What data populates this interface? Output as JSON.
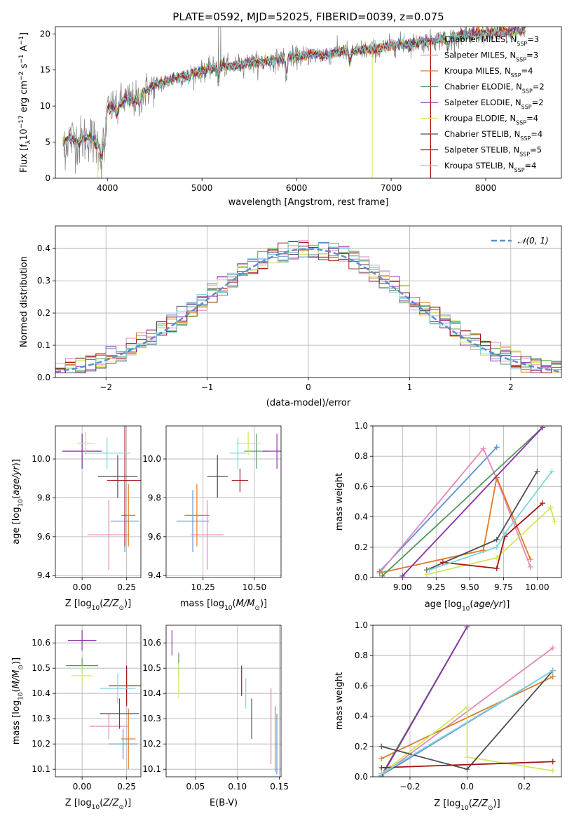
{
  "figure": {
    "title": "PLATE=0592, MJD=52025, FIBERID=0039, z=0.075"
  },
  "colors": {
    "Chabrier MILES": "#5b8fd6",
    "Salpeter MILES": "#e387b8",
    "Kroupa MILES": "#e07b24",
    "Chabrier ELODIE": "#4e9a5a",
    "Salpeter ELODIE": "#8c2fa8",
    "Kroupa ELODIE": "#cfe85a",
    "Chabrier STELIB": "#4d4d4d",
    "Salpeter STELIB": "#a31515",
    "Kroupa STELIB": "#7fd4dc",
    "normal": "#5b8fd6",
    "data": "#808080"
  },
  "chart_data": [
    {
      "id": "spectrum",
      "type": "line",
      "xlabel": "wavelength [Angstrom, rest frame]",
      "ylabel": "Flux [f_λ10^-17 erg cm^-2 s^-1 A^-1]",
      "xlim": [
        3450,
        8800
      ],
      "ylim": [
        0,
        21
      ],
      "xticks": [
        4000,
        5000,
        6000,
        7000,
        8000
      ],
      "yticks": [
        0,
        5,
        10,
        15,
        20
      ],
      "legend_position": "top-right",
      "continuum": {
        "x": [
          3550,
          3600,
          3700,
          3800,
          3900,
          3950,
          4000,
          4100,
          4200,
          4300,
          4400,
          4500,
          4600,
          4700,
          4800,
          4900,
          5000,
          5100,
          5200,
          5300,
          5400,
          5500,
          5600,
          5700,
          5800,
          5900,
          6000,
          6100,
          6200,
          6300,
          6400,
          6500,
          6600,
          6700,
          6800,
          6900,
          7000,
          7100,
          7200,
          7300,
          7400,
          7500,
          7600,
          7700,
          7800,
          7900,
          8000,
          8100,
          8200,
          8300,
          8400
        ],
        "y": [
          5.0,
          5.6,
          5.0,
          5.8,
          4.6,
          4.8,
          9.5,
          10.2,
          11.0,
          10.8,
          12.0,
          12.8,
          13.3,
          13.8,
          14.2,
          14.6,
          14.8,
          15.2,
          15.6,
          15.4,
          15.8,
          16.0,
          16.0,
          16.2,
          16.4,
          16.8,
          16.8,
          17.0,
          17.2,
          17.0,
          17.4,
          17.6,
          17.5,
          17.8,
          17.8,
          18.0,
          18.4,
          18.6,
          18.6,
          18.8,
          19.0,
          19.2,
          19.4,
          19.6,
          19.8,
          20.0,
          20.0,
          20.2,
          20.2,
          20.3,
          20.4
        ]
      },
      "absorption_lines": [
        {
          "x": 3934,
          "y": 2.5
        },
        {
          "x": 3969,
          "y": 3.5
        },
        {
          "x": 4102,
          "y": 8.5
        },
        {
          "x": 4340,
          "y": 10.0
        },
        {
          "x": 4861,
          "y": 13.5
        },
        {
          "x": 5175,
          "y": 13.0
        },
        {
          "x": 5893,
          "y": 13.5
        },
        {
          "x": 6563,
          "y": 16.0
        },
        {
          "x": 7600,
          "y": 17.5
        }
      ],
      "series": [
        {
          "name": "Chabrier MILES, N_SSP=3"
        },
        {
          "name": "Salpeter MILES, N_SSP=3"
        },
        {
          "name": "Kroupa MILES, N_SSP=4"
        },
        {
          "name": "Chabrier ELODIE, N_SSP=2"
        },
        {
          "name": "Salpeter ELODIE, N_SSP=2"
        },
        {
          "name": "Kroupa ELODIE, N_SSP=4"
        },
        {
          "name": "Chabrier STELIB, N_SSP=4"
        },
        {
          "name": "Salpeter STELIB, N_SSP=5"
        },
        {
          "name": "Kroupa STELIB, N_SSP=4"
        }
      ]
    },
    {
      "id": "residuals",
      "type": "step",
      "xlabel": "(data-model)/error",
      "ylabel": "Normed distribution",
      "xlim": [
        -2.5,
        2.5
      ],
      "ylim": [
        0,
        0.47
      ],
      "xticks": [
        -2,
        -1,
        0,
        1,
        2
      ],
      "yticks": [
        0.0,
        0.1,
        0.2,
        0.3,
        0.4
      ],
      "grid": true,
      "legend": "𝒩(0, 1)",
      "legend_position": "top-right",
      "bin_width": 0.1
    },
    {
      "id": "age-vs-Z",
      "type": "errorbar",
      "xlabel": "Z [log10(Z/Z⊙)]",
      "ylabel": "age  [log10(age/yr)]",
      "xlim": [
        -0.15,
        0.33
      ],
      "ylim": [
        9.39,
        10.17
      ],
      "xticks": [
        0.0,
        0.25
      ],
      "yticks": [
        9.4,
        9.6,
        9.8,
        10.0
      ],
      "grid": true,
      "points": [
        {
          "model": "Chabrier MILES",
          "x": 0.24,
          "y": 9.68,
          "xerr": 0.08,
          "yerr": 0.16
        },
        {
          "model": "Salpeter MILES",
          "x": 0.15,
          "y": 9.61,
          "xerr": 0.12,
          "yerr": 0.18
        },
        {
          "model": "Kroupa MILES",
          "x": 0.26,
          "y": 9.71,
          "xerr": 0.04,
          "yerr": 0.16
        },
        {
          "model": "Chabrier ELODIE",
          "x": 0.0,
          "y": 10.04,
          "xerr": 0.11,
          "yerr": 0.09
        },
        {
          "model": "Salpeter ELODIE",
          "x": 0.0,
          "y": 10.04,
          "xerr": 0.11,
          "yerr": 0.09
        },
        {
          "model": "Kroupa ELODIE",
          "x": 0.02,
          "y": 10.08,
          "xerr": 0.05,
          "yerr": 0.06
        },
        {
          "model": "Chabrier STELIB",
          "x": 0.2,
          "y": 9.91,
          "xerr": 0.11,
          "yerr": 0.11
        },
        {
          "model": "Salpeter STELIB",
          "x": 0.24,
          "y": 9.89,
          "xerr": 0.1,
          "yerr": 0.34
        },
        {
          "model": "Kroupa STELIB",
          "x": 0.14,
          "y": 10.03,
          "xerr": 0.13,
          "yerr": 0.08
        }
      ]
    },
    {
      "id": "age-vs-mass",
      "type": "errorbar",
      "xlabel": "mass [log10(M/M⊙)]",
      "ylabel": "",
      "xlim": [
        10.07,
        10.63
      ],
      "ylim": [
        9.39,
        10.17
      ],
      "xticks": [
        10.25,
        10.5
      ],
      "yticks": [
        9.4,
        9.6,
        9.8,
        10.0
      ],
      "grid": true,
      "points": [
        {
          "model": "Chabrier MILES",
          "x": 10.2,
          "y": 9.68,
          "xerr": 0.08,
          "yerr": 0.16
        },
        {
          "model": "Salpeter MILES",
          "x": 10.27,
          "y": 9.61,
          "xerr": 0.08,
          "yerr": 0.18
        },
        {
          "model": "Kroupa MILES",
          "x": 10.22,
          "y": 9.71,
          "xerr": 0.06,
          "yerr": 0.16
        },
        {
          "model": "Chabrier ELODIE",
          "x": 10.51,
          "y": 10.04,
          "xerr": 0.06,
          "yerr": 0.09
        },
        {
          "model": "Salpeter ELODIE",
          "x": 10.61,
          "y": 10.04,
          "xerr": 0.07,
          "yerr": 0.09
        },
        {
          "model": "Kroupa ELODIE",
          "x": 10.47,
          "y": 10.08,
          "xerr": 0.06,
          "yerr": 0.06
        },
        {
          "model": "Chabrier STELIB",
          "x": 10.32,
          "y": 9.91,
          "xerr": 0.05,
          "yerr": 0.11
        },
        {
          "model": "Salpeter STELIB",
          "x": 10.43,
          "y": 9.89,
          "xerr": 0.04,
          "yerr": 0.06
        },
        {
          "model": "Kroupa STELIB",
          "x": 10.42,
          "y": 10.03,
          "xerr": 0.04,
          "yerr": 0.08
        }
      ]
    },
    {
      "id": "weight-vs-age",
      "type": "line",
      "xlabel": "age  [log10(age/yr)]",
      "ylabel": "mass weight",
      "xlim": [
        8.78,
        10.18
      ],
      "ylim": [
        0,
        1
      ],
      "xticks": [
        9.0,
        9.25,
        9.5,
        9.75,
        10.0
      ],
      "yticks": [
        0.0,
        0.2,
        0.4,
        0.6,
        0.8,
        1.0
      ],
      "grid": true,
      "series": [
        {
          "model": "Chabrier MILES",
          "x": [
            8.83,
            9.7
          ],
          "y": [
            0.04,
            0.86
          ]
        },
        {
          "model": "Salpeter MILES",
          "x": [
            8.83,
            9.6,
            9.7,
            9.95
          ],
          "y": [
            0.03,
            0.85,
            0.65,
            0.07
          ]
        },
        {
          "model": "Kroupa MILES",
          "x": [
            8.83,
            9.6,
            9.7,
            9.95
          ],
          "y": [
            0.03,
            0.18,
            0.66,
            0.12
          ]
        },
        {
          "model": "Chabrier ELODIE",
          "x": [
            8.85,
            10.04
          ],
          "y": [
            0.01,
            0.99
          ]
        },
        {
          "model": "Salpeter ELODIE",
          "x": [
            9.0,
            10.04
          ],
          "y": [
            0.01,
            0.99
          ]
        },
        {
          "model": "Kroupa ELODIE",
          "x": [
            9.18,
            9.7,
            10.1,
            10.13
          ],
          "y": [
            0.02,
            0.13,
            0.46,
            0.37
          ]
        },
        {
          "model": "Chabrier STELIB",
          "x": [
            9.18,
            9.7,
            10.0
          ],
          "y": [
            0.05,
            0.25,
            0.7
          ]
        },
        {
          "model": "Salpeter STELIB",
          "x": [
            9.3,
            9.7,
            9.76,
            10.04
          ],
          "y": [
            0.1,
            0.06,
            0.27,
            0.49
          ]
        },
        {
          "model": "Kroupa STELIB",
          "x": [
            9.2,
            9.7,
            9.76,
            10.11
          ],
          "y": [
            0.05,
            0.2,
            0.29,
            0.7
          ]
        }
      ]
    },
    {
      "id": "mass-vs-Z",
      "type": "errorbar",
      "xlabel": "Z [log10(Z/Z⊙)]",
      "ylabel": "mass [log10(M/M⊙)]",
      "xlim": [
        -0.15,
        0.33
      ],
      "ylim": [
        10.07,
        10.67
      ],
      "xticks": [
        0.0,
        0.25
      ],
      "yticks": [
        10.1,
        10.2,
        10.3,
        10.4,
        10.5,
        10.6
      ],
      "grid": true,
      "points": [
        {
          "model": "Chabrier MILES",
          "x": 0.23,
          "y": 10.2,
          "xerr": 0.08,
          "yerr": 0.06
        },
        {
          "model": "Salpeter MILES",
          "x": 0.15,
          "y": 10.27,
          "xerr": 0.11,
          "yerr": 0.05
        },
        {
          "model": "Kroupa MILES",
          "x": 0.26,
          "y": 10.22,
          "xerr": 0.04,
          "yerr": 0.12
        },
        {
          "model": "Chabrier ELODIE",
          "x": 0.0,
          "y": 10.51,
          "xerr": 0.09,
          "yerr": 0.03
        },
        {
          "model": "Salpeter ELODIE",
          "x": 0.0,
          "y": 10.61,
          "xerr": 0.08,
          "yerr": 0.04
        },
        {
          "model": "Kroupa ELODIE",
          "x": 0.0,
          "y": 10.47,
          "xerr": 0.06,
          "yerr": 0.04
        },
        {
          "model": "Chabrier STELIB",
          "x": 0.21,
          "y": 10.32,
          "xerr": 0.11,
          "yerr": 0.06
        },
        {
          "model": "Salpeter STELIB",
          "x": 0.25,
          "y": 10.43,
          "xerr": 0.1,
          "yerr": 0.08
        },
        {
          "model": "Kroupa STELIB",
          "x": 0.2,
          "y": 10.42,
          "xerr": 0.1,
          "yerr": 0.06
        }
      ]
    },
    {
      "id": "mass-vs-ebv",
      "type": "errorbar",
      "xlabel": "E(B-V)",
      "ylabel": "",
      "xlim": [
        0.015,
        0.152
      ],
      "ylim": [
        10.07,
        10.67
      ],
      "xticks": [
        0.05,
        0.1,
        0.15
      ],
      "yticks": [
        10.1,
        10.2,
        10.3,
        10.4,
        10.5,
        10.6
      ],
      "grid": true,
      "points": [
        {
          "model": "Chabrier MILES",
          "x": 0.147,
          "y": 10.2,
          "xerr": 0,
          "yerr": 0.12
        },
        {
          "model": "Salpeter MILES",
          "x": 0.14,
          "y": 10.27,
          "xerr": 0,
          "yerr": 0.15
        },
        {
          "model": "Kroupa MILES",
          "x": 0.145,
          "y": 10.22,
          "xerr": 0,
          "yerr": 0.13
        },
        {
          "model": "Chabrier ELODIE",
          "x": 0.03,
          "y": 10.51,
          "xerr": 0,
          "yerr": 0.05
        },
        {
          "model": "Salpeter ELODIE",
          "x": 0.022,
          "y": 10.6,
          "xerr": 0,
          "yerr": 0.05
        },
        {
          "model": "Kroupa ELODIE",
          "x": 0.03,
          "y": 10.45,
          "xerr": 0,
          "yerr": 0.07
        },
        {
          "model": "Chabrier STELIB",
          "x": 0.117,
          "y": 10.3,
          "xerr": 0,
          "yerr": 0.08
        },
        {
          "model": "Salpeter STELIB",
          "x": 0.105,
          "y": 10.45,
          "xerr": 0,
          "yerr": 0.06
        },
        {
          "model": "Kroupa STELIB",
          "x": 0.11,
          "y": 10.4,
          "xerr": 0,
          "yerr": 0.06
        }
      ]
    },
    {
      "id": "weight-vs-Z",
      "type": "line",
      "xlabel": "Z [log10(Z/Z⊙)]",
      "ylabel": "mass weight",
      "xlim": [
        -0.33,
        0.33
      ],
      "ylim": [
        0,
        1
      ],
      "xticks": [
        -0.2,
        0.0,
        0.2
      ],
      "yticks": [
        0.0,
        0.2,
        0.4,
        0.6,
        0.8,
        1.0
      ],
      "grid": true,
      "series": [
        {
          "model": "Chabrier MILES",
          "x": [
            -0.3,
            0.3
          ],
          "y": [
            0.01,
            0.7
          ]
        },
        {
          "model": "Salpeter MILES",
          "x": [
            -0.3,
            0.3
          ],
          "y": [
            0.01,
            0.85
          ]
        },
        {
          "model": "Kroupa MILES",
          "x": [
            -0.3,
            0.3
          ],
          "y": [
            0.12,
            0.66
          ]
        },
        {
          "model": "Chabrier ELODIE",
          "x": [
            -0.3,
            0.0
          ],
          "y": [
            0.01,
            0.99
          ]
        },
        {
          "model": "Salpeter ELODIE",
          "x": [
            -0.3,
            0.0
          ],
          "y": [
            0.0,
            0.99
          ]
        },
        {
          "model": "Kroupa ELODIE",
          "x": [
            -0.3,
            0.0,
            0.0,
            0.3
          ],
          "y": [
            0.02,
            0.46,
            0.13,
            0.04
          ]
        },
        {
          "model": "Chabrier STELIB",
          "x": [
            -0.3,
            0.0,
            0.3
          ],
          "y": [
            0.2,
            0.05,
            0.7
          ]
        },
        {
          "model": "Salpeter STELIB",
          "x": [
            -0.3,
            0.3
          ],
          "y": [
            0.06,
            0.1
          ]
        },
        {
          "model": "Kroupa STELIB",
          "x": [
            -0.3,
            0.3
          ],
          "y": [
            0.02,
            0.7
          ]
        }
      ]
    }
  ]
}
